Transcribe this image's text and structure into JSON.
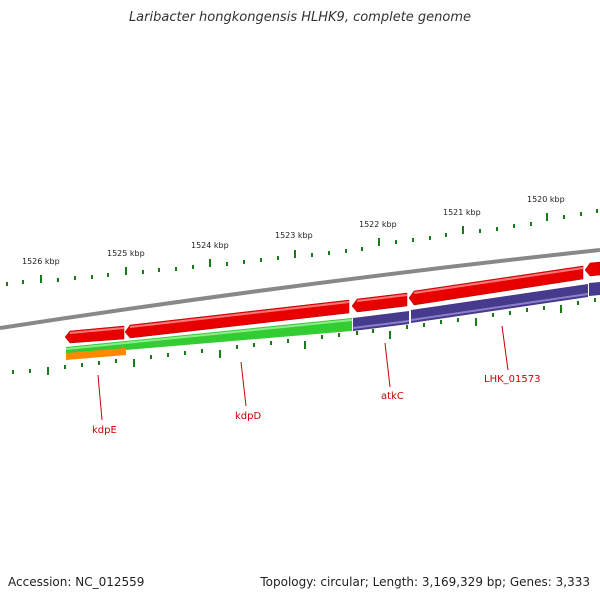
{
  "title": "Laribacter hongkongensis HLHK9, complete genome",
  "footer": {
    "accession": "Accession: NC_012559",
    "summary": "Topology: circular; Length: 3,169,329 bp; Genes: 3,333"
  },
  "ruler": {
    "labels": [
      "1526 kbp",
      "1525 kbp",
      "1524 kbp",
      "1523 kbp",
      "1522 kbp",
      "1521 kbp",
      "1520 kbp"
    ],
    "color": "#1a7a1a"
  },
  "genes": [
    {
      "name": "kdpE"
    },
    {
      "name": "kdpD"
    },
    {
      "name": "atkC"
    },
    {
      "name": "LHK_01573"
    }
  ],
  "colors": {
    "backbone": "#888888",
    "cds": "#e80000",
    "cog_green": "#33cc33",
    "cog_orange": "#ff8800",
    "cog_purple": "#463a8c",
    "gene_label": "#cc0000"
  }
}
